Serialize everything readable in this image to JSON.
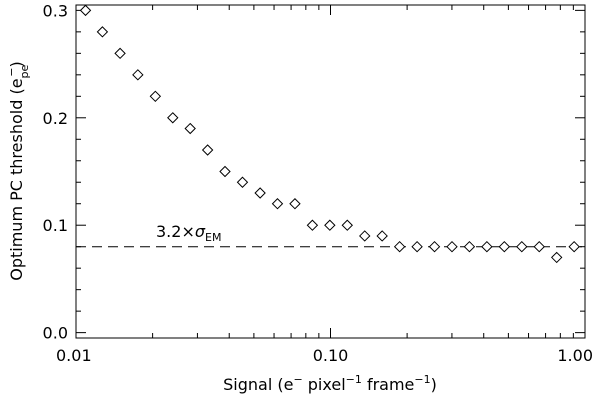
{
  "chart_data": {
    "type": "scatter",
    "title": "",
    "xlabel": {
      "prefix": "Signal (e",
      "sup1": "−",
      "mid1": " pixel",
      "sup2": "−1",
      "mid2": " frame",
      "sup3": "−1",
      "suffix": ")"
    },
    "ylabel": {
      "prefix": "Optimum PC threshold (e",
      "sub": "pe",
      "sup": "−",
      "suffix": ")"
    },
    "xscale": "log",
    "xlim": [
      0.01,
      1.0
    ],
    "ylim": [
      -0.005,
      0.305
    ],
    "xticks": [
      {
        "value": 0.01,
        "label": "0.01"
      },
      {
        "value": 0.1,
        "label": "0.10"
      },
      {
        "value": 1.0,
        "label": "1.00"
      }
    ],
    "yticks": [
      {
        "value": 0.0,
        "label": "0.0"
      },
      {
        "value": 0.1,
        "label": "0.1"
      },
      {
        "value": 0.2,
        "label": "0.2"
      },
      {
        "value": 0.3,
        "label": "0.3"
      }
    ],
    "grid": false,
    "marker": "diamond",
    "series": [
      {
        "x": [
          0.0109,
          0.0127,
          0.0149,
          0.0175,
          0.0205,
          0.024,
          0.0281,
          0.0329,
          0.0385,
          0.0451,
          0.0529,
          0.0619,
          0.0725,
          0.0849,
          0.0994,
          0.1164,
          0.1363,
          0.1596,
          0.1869,
          0.2189,
          0.2563,
          0.3002,
          0.3515,
          0.4116,
          0.482,
          0.5645,
          0.661,
          0.7741,
          0.9064
        ],
        "y": [
          0.3,
          0.28,
          0.26,
          0.24,
          0.22,
          0.2,
          0.19,
          0.17,
          0.15,
          0.14,
          0.13,
          0.12,
          0.12,
          0.1,
          0.1,
          0.1,
          0.09,
          0.09,
          0.08,
          0.08,
          0.08,
          0.08,
          0.08,
          0.08,
          0.08,
          0.08,
          0.08,
          0.07,
          0.08
        ]
      }
    ],
    "reference_line": {
      "y": 0.08,
      "style": "dashed",
      "label": {
        "prefix": "3.2×",
        "symbol": "σ",
        "sub": "EM"
      }
    }
  }
}
